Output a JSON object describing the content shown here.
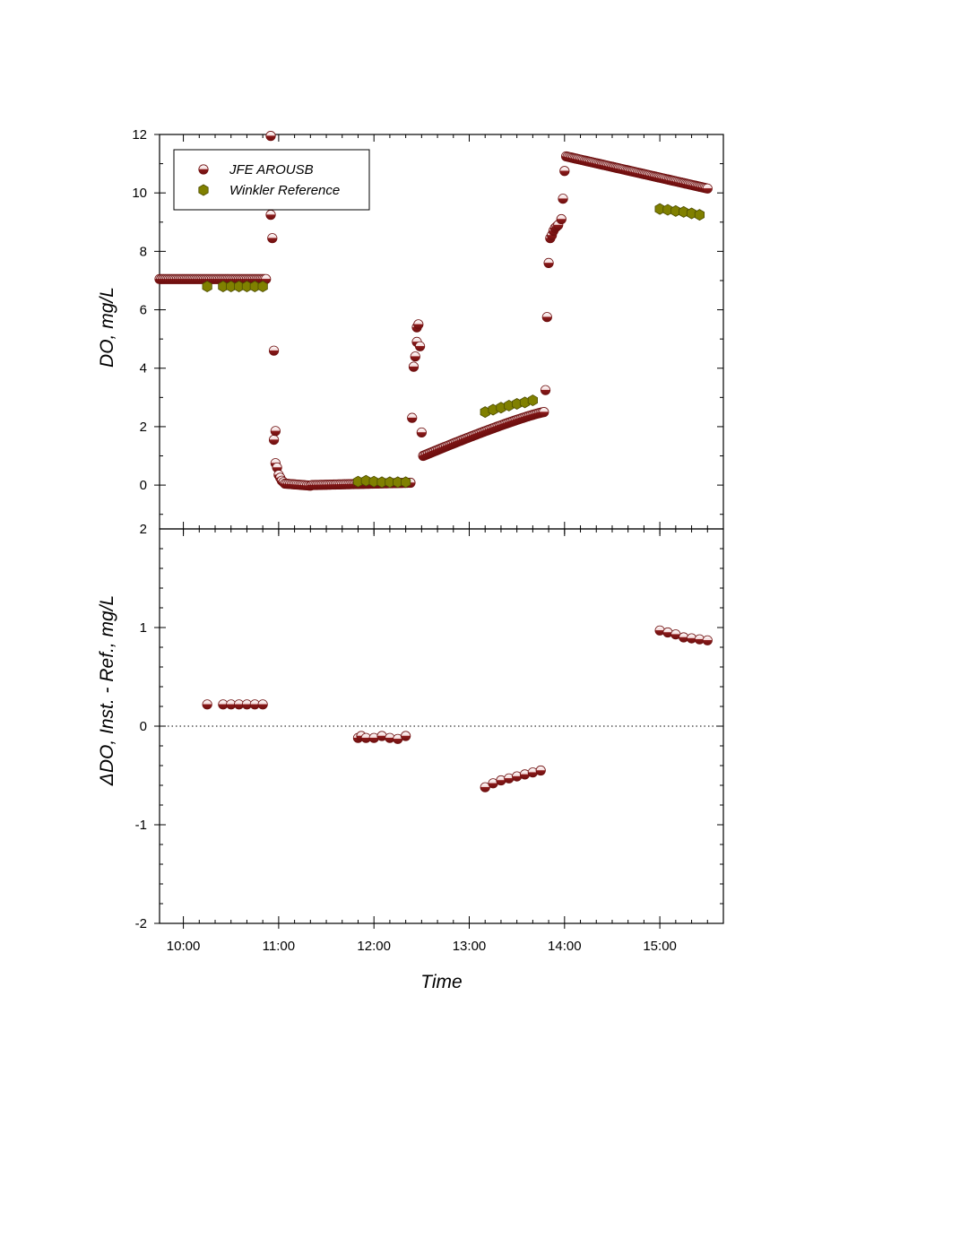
{
  "chart_data": [
    {
      "type": "scatter",
      "panel": "top",
      "title": "",
      "xlabel": "",
      "ylabel": "DO, mg/L",
      "xlim": [
        "09:45",
        "15:40"
      ],
      "ylim": [
        -1.5,
        12
      ],
      "yticks": [
        0,
        2,
        4,
        6,
        8,
        10,
        12
      ],
      "yticklabels": [
        "0",
        "2",
        "4",
        "6",
        "8",
        "10",
        "12"
      ],
      "extra_bottom_label": "2",
      "grid": false,
      "legend": {
        "placement": "top-left",
        "entries": [
          "JFE AROUSB",
          "Winkler Reference"
        ]
      },
      "colors": {
        "JFE AROUSB": "#8b1a1a",
        "Winkler Reference": "#808000"
      },
      "series": [
        {
          "name": "JFE AROUSB",
          "segments": [
            {
              "kind": "linear",
              "from": [
                "09:45",
                7.05
              ],
              "to": [
                "10:52",
                7.05
              ],
              "count": 68
            },
            {
              "kind": "points",
              "points": [
                [
                  "10:55",
                  11.95
                ],
                [
                  "10:55",
                  9.25
                ],
                [
                  "10:56",
                  8.45
                ],
                [
                  "10:57",
                  4.6
                ],
                [
                  "10:57",
                  1.55
                ],
                [
                  "10:58",
                  1.85
                ],
                [
                  "10:58",
                  0.75
                ],
                [
                  "10:59",
                  0.6
                ],
                [
                  "11:00",
                  0.35
                ],
                [
                  "11:01",
                  0.25
                ],
                [
                  "11:02",
                  0.15
                ],
                [
                  "11:03",
                  0.1
                ]
              ]
            },
            {
              "kind": "linear",
              "from": [
                "11:04",
                0.05
              ],
              "to": [
                "11:20",
                -0.02
              ],
              "count": 16
            },
            {
              "kind": "linear",
              "from": [
                "11:21",
                0.0
              ],
              "to": [
                "12:23",
                0.08
              ],
              "count": 60
            },
            {
              "kind": "points",
              "points": [
                [
                  "12:24",
                  2.3
                ],
                [
                  "12:25",
                  4.05
                ],
                [
                  "12:26",
                  4.4
                ],
                [
                  "12:27",
                  4.9
                ],
                [
                  "12:27",
                  5.4
                ],
                [
                  "12:28",
                  5.5
                ],
                [
                  "12:29",
                  4.75
                ],
                [
                  "12:30",
                  1.8
                ]
              ]
            },
            {
              "kind": "curve",
              "from": [
                "12:31",
                1.0
              ],
              "to": [
                "13:47",
                2.5
              ],
              "count": 75
            },
            {
              "kind": "points",
              "points": [
                [
                  "13:48",
                  3.25
                ],
                [
                  "13:49",
                  5.75
                ],
                [
                  "13:50",
                  7.6
                ],
                [
                  "13:51",
                  8.45
                ],
                [
                  "13:52",
                  8.55
                ],
                [
                  "13:53",
                  8.7
                ],
                [
                  "13:54",
                  8.8
                ],
                [
                  "13:55",
                  8.85
                ],
                [
                  "13:56",
                  8.9
                ],
                [
                  "13:58",
                  9.1
                ],
                [
                  "13:59",
                  9.8
                ],
                [
                  "14:00",
                  10.75
                ]
              ]
            },
            {
              "kind": "curve",
              "from": [
                "14:01",
                11.25
              ],
              "to": [
                "15:30",
                10.15
              ],
              "count": 100
            }
          ]
        },
        {
          "name": "Winkler Reference",
          "points": [
            [
              "10:15",
              6.8
            ],
            [
              "10:25",
              6.8
            ],
            [
              "10:30",
              6.8
            ],
            [
              "10:35",
              6.8
            ],
            [
              "10:40",
              6.8
            ],
            [
              "10:45",
              6.8
            ],
            [
              "10:50",
              6.8
            ],
            [
              "11:50",
              0.12
            ],
            [
              "11:55",
              0.15
            ],
            [
              "12:00",
              0.12
            ],
            [
              "12:05",
              0.1
            ],
            [
              "12:10",
              0.1
            ],
            [
              "12:15",
              0.1
            ],
            [
              "12:20",
              0.1
            ],
            [
              "13:10",
              2.5
            ],
            [
              "13:15",
              2.58
            ],
            [
              "13:20",
              2.65
            ],
            [
              "13:25",
              2.72
            ],
            [
              "13:30",
              2.78
            ],
            [
              "13:35",
              2.83
            ],
            [
              "13:40",
              2.9
            ],
            [
              "15:00",
              9.45
            ],
            [
              "15:05",
              9.42
            ],
            [
              "15:10",
              9.38
            ],
            [
              "15:15",
              9.35
            ],
            [
              "15:20",
              9.3
            ],
            [
              "15:25",
              9.25
            ]
          ]
        }
      ]
    },
    {
      "type": "scatter",
      "panel": "bottom",
      "title": "",
      "xlabel": "Time",
      "ylabel": "ΔDO, Inst. - Ref., mg/L",
      "xlim": [
        "09:45",
        "15:40"
      ],
      "ylim": [
        -2,
        2
      ],
      "yticks": [
        -2,
        -1,
        0,
        1
      ],
      "yticklabels": [
        "-2",
        "-1",
        "0",
        "1"
      ],
      "xticks": [
        "10:00",
        "11:00",
        "12:00",
        "13:00",
        "14:00",
        "15:00"
      ],
      "zero_line": "dotted",
      "grid": false,
      "colors": {
        "points": "#8b1a1a"
      },
      "series": [
        {
          "points": [
            [
              "10:15",
              0.22
            ],
            [
              "10:25",
              0.22
            ],
            [
              "10:30",
              0.22
            ],
            [
              "10:35",
              0.22
            ],
            [
              "10:40",
              0.22
            ],
            [
              "10:45",
              0.22
            ],
            [
              "10:50",
              0.22
            ],
            [
              "11:50",
              -0.12
            ],
            [
              "11:52",
              -0.1
            ],
            [
              "11:55",
              -0.12
            ],
            [
              "12:00",
              -0.12
            ],
            [
              "12:05",
              -0.1
            ],
            [
              "12:10",
              -0.12
            ],
            [
              "12:15",
              -0.13
            ],
            [
              "12:20",
              -0.1
            ],
            [
              "13:10",
              -0.62
            ],
            [
              "13:15",
              -0.58
            ],
            [
              "13:20",
              -0.55
            ],
            [
              "13:25",
              -0.53
            ],
            [
              "13:30",
              -0.51
            ],
            [
              "13:35",
              -0.49
            ],
            [
              "13:40",
              -0.47
            ],
            [
              "13:45",
              -0.45
            ],
            [
              "15:00",
              0.97
            ],
            [
              "15:05",
              0.95
            ],
            [
              "15:10",
              0.93
            ],
            [
              "15:15",
              0.9
            ],
            [
              "15:20",
              0.89
            ],
            [
              "15:25",
              0.88
            ],
            [
              "15:30",
              0.87
            ]
          ]
        }
      ]
    }
  ]
}
